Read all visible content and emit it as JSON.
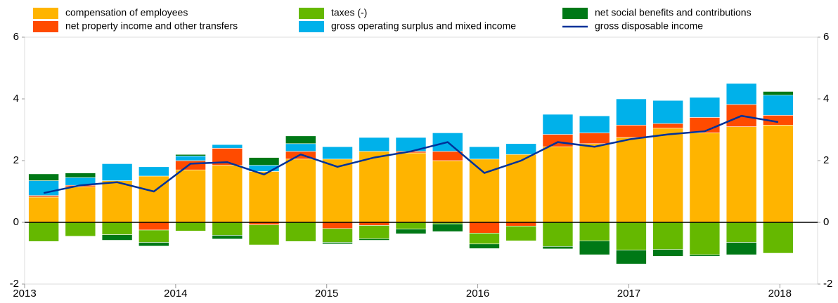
{
  "chart_data": {
    "type": "bar",
    "categories": [
      null,
      null,
      null,
      null,
      null,
      null,
      null,
      null,
      null,
      null,
      null,
      null,
      null,
      null,
      null,
      null,
      null,
      null,
      null,
      null,
      null
    ],
    "year_labels": [
      "2013",
      "2014",
      "2015",
      "2016",
      "2017",
      "2018"
    ],
    "series": [
      {
        "name": "compensation of employees",
        "color": "#ffb400",
        "values": [
          0.82,
          1.15,
          1.35,
          1.5,
          1.7,
          1.85,
          1.65,
          2.05,
          2.05,
          2.3,
          2.25,
          2.0,
          2.05,
          2.2,
          2.45,
          2.55,
          2.75,
          3.05,
          2.9,
          3.1,
          3.15
        ]
      },
      {
        "name": "net property income and other transfers",
        "color": "#ff4b00",
        "values": [
          0.05,
          0.05,
          0,
          -0.25,
          0.3,
          0.55,
          -0.08,
          0.25,
          -0.2,
          -0.1,
          0.05,
          0.3,
          -0.35,
          -0.12,
          0.4,
          0.35,
          0.4,
          0.15,
          0.5,
          0.72,
          0.32
        ]
      },
      {
        "name": "taxes (-)",
        "color": "#65b800",
        "values": [
          -0.62,
          -0.45,
          -0.4,
          -0.4,
          -0.28,
          -0.42,
          -0.65,
          -0.62,
          -0.45,
          -0.43,
          -0.22,
          -0.05,
          -0.35,
          -0.48,
          -0.78,
          -0.6,
          -0.9,
          -0.88,
          -1.05,
          -0.65,
          -1.0
        ]
      },
      {
        "name": "gross operating surplus and mixed income",
        "color": "#00b1ea",
        "values": [
          0.48,
          0.25,
          0.55,
          0.3,
          0.15,
          0.12,
          0.2,
          0.25,
          0.4,
          0.45,
          0.45,
          0.6,
          0.4,
          0.35,
          0.65,
          0.55,
          0.85,
          0.75,
          0.65,
          0.68,
          0.65
        ]
      },
      {
        "name": "net social benefits and contributions",
        "color": "#007816",
        "values": [
          0.22,
          0.15,
          -0.18,
          -0.12,
          0.05,
          -0.12,
          0.25,
          0.25,
          -0.05,
          -0.05,
          -0.15,
          -0.25,
          -0.15,
          0,
          -0.08,
          -0.45,
          -0.45,
          -0.22,
          -0.05,
          -0.4,
          0.12
        ]
      },
      {
        "name": "gross disposable income",
        "color": "#003299",
        "kind": "line",
        "values": [
          0.95,
          1.2,
          1.3,
          1.0,
          1.9,
          1.95,
          1.55,
          2.2,
          1.8,
          2.1,
          2.3,
          2.6,
          1.6,
          2.0,
          2.6,
          2.45,
          2.7,
          2.85,
          2.95,
          3.45,
          3.25
        ]
      }
    ],
    "ylim": [
      -2,
      6
    ],
    "yticks": [
      -2,
      0,
      2,
      4,
      6
    ],
    "grid": false
  }
}
